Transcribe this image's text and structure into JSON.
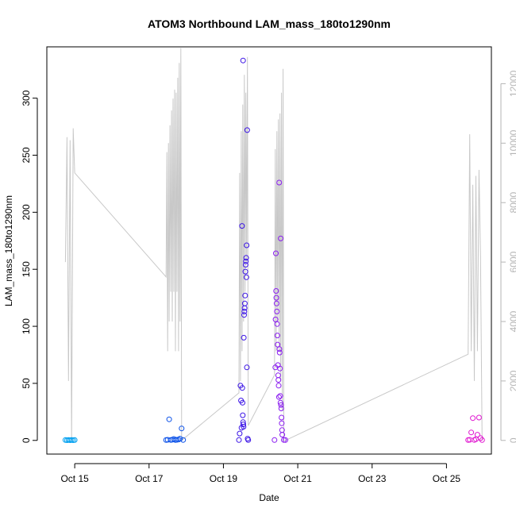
{
  "chart_data": {
    "type": "scatter",
    "title": "ATOM3 Northbound LAM_mass_180to1290nm",
    "xlabel": "Date",
    "ylabel": "LAM_mass_180to1290nm",
    "x_ticks": [
      "Oct 15",
      "Oct 17",
      "Oct 19",
      "Oct 21",
      "Oct 23",
      "Oct 25"
    ],
    "y_ticks_left": [
      0,
      50,
      100,
      150,
      200,
      250,
      300
    ],
    "y_ticks_right": [
      0,
      2000,
      4000,
      6000,
      8000,
      10000,
      12000
    ],
    "xlim": [
      "2016-10-14T06:00",
      "2016-10-26T05:00"
    ],
    "ylim_left": [
      -12,
      345
    ],
    "ylim_right": [
      -460,
      13240
    ],
    "grid": false,
    "legend": "none",
    "series": [
      {
        "kind": "points",
        "axis": "left",
        "color": "#00a0f0",
        "points": [
          [
            "2016-10-14T18:00",
            0.3
          ],
          [
            "2016-10-14T19:00",
            0.2
          ],
          [
            "2016-10-14T20:00",
            0.4
          ],
          [
            "2016-10-14T21:00",
            0.2
          ],
          [
            "2016-10-14T22:00",
            0.3
          ],
          [
            "2016-10-14T23:00",
            0.2
          ],
          [
            "2016-10-15T00:00",
            0.3
          ]
        ]
      },
      {
        "kind": "points",
        "axis": "left",
        "color": "#0a50e8",
        "points": [
          [
            "2016-10-17T11:00",
            0.3
          ],
          [
            "2016-10-17T12:00",
            0.5
          ],
          [
            "2016-10-17T13:00",
            18.5
          ],
          [
            "2016-10-17T14:00",
            0.4
          ],
          [
            "2016-10-17T15:00",
            0.6
          ],
          [
            "2016-10-17T16:00",
            1.2
          ],
          [
            "2016-10-17T17:00",
            0.3
          ],
          [
            "2016-10-17T18:00",
            0.5
          ],
          [
            "2016-10-17T19:00",
            0.8
          ],
          [
            "2016-10-17T20:00",
            1.5
          ],
          [
            "2016-10-17T21:00",
            10.5
          ],
          [
            "2016-10-17T22:00",
            0.4
          ]
        ]
      },
      {
        "kind": "points",
        "axis": "left",
        "color": "#3b14e6",
        "points": [
          [
            "2016-10-19T10:00",
            0.3
          ],
          [
            "2016-10-19T10:30",
            6
          ],
          [
            "2016-10-19T11:00",
            48
          ],
          [
            "2016-10-19T11:20",
            35
          ],
          [
            "2016-10-19T11:40",
            11
          ],
          [
            "2016-10-19T12:00",
            188
          ],
          [
            "2016-10-19T12:10",
            46
          ],
          [
            "2016-10-19T12:20",
            33
          ],
          [
            "2016-10-19T12:30",
            22
          ],
          [
            "2016-10-19T12:40",
            16
          ],
          [
            "2016-10-19T12:50",
            14
          ],
          [
            "2016-10-19T13:00",
            12
          ],
          [
            "2016-10-19T13:10",
            90
          ],
          [
            "2016-10-19T13:20",
            110
          ],
          [
            "2016-10-19T13:30",
            113
          ],
          [
            "2016-10-19T13:40",
            116
          ],
          [
            "2016-10-19T13:50",
            120
          ],
          [
            "2016-10-19T14:00",
            127
          ],
          [
            "2016-10-19T14:10",
            148
          ],
          [
            "2016-10-19T14:20",
            154
          ],
          [
            "2016-10-19T14:30",
            157
          ],
          [
            "2016-10-19T14:40",
            160
          ],
          [
            "2016-10-19T14:50",
            143
          ],
          [
            "2016-10-19T15:00",
            171
          ],
          [
            "2016-10-19T15:10",
            64
          ],
          [
            "2016-10-19T15:20",
            272
          ],
          [
            "2016-10-19T12:40",
            333
          ],
          [
            "2016-10-19T15:40",
            1.5
          ],
          [
            "2016-10-19T16:00",
            0.3
          ]
        ]
      },
      {
        "kind": "points",
        "axis": "left",
        "color": "#8a1cf0",
        "points": [
          [
            "2016-10-20T09:00",
            0.3
          ],
          [
            "2016-10-20T09:30",
            64
          ],
          [
            "2016-10-20T09:40",
            106
          ],
          [
            "2016-10-20T09:50",
            164
          ],
          [
            "2016-10-20T10:00",
            131
          ],
          [
            "2016-10-20T10:10",
            125
          ],
          [
            "2016-10-20T10:20",
            120
          ],
          [
            "2016-10-20T10:30",
            113
          ],
          [
            "2016-10-20T10:40",
            102
          ],
          [
            "2016-10-20T10:50",
            92
          ],
          [
            "2016-10-20T11:00",
            84
          ],
          [
            "2016-10-20T11:10",
            66
          ],
          [
            "2016-10-20T11:20",
            57
          ],
          [
            "2016-10-20T11:30",
            53
          ],
          [
            "2016-10-20T11:40",
            48
          ],
          [
            "2016-10-20T11:50",
            38
          ],
          [
            "2016-10-20T12:00",
            226
          ],
          [
            "2016-10-20T12:10",
            80
          ],
          [
            "2016-10-20T12:20",
            77
          ],
          [
            "2016-10-20T12:30",
            63
          ],
          [
            "2016-10-20T12:40",
            39
          ],
          [
            "2016-10-20T12:50",
            33
          ],
          [
            "2016-10-20T13:00",
            177
          ],
          [
            "2016-10-20T13:10",
            31
          ],
          [
            "2016-10-20T13:20",
            28
          ],
          [
            "2016-10-20T13:30",
            20
          ],
          [
            "2016-10-20T13:40",
            15
          ],
          [
            "2016-10-20T13:50",
            9
          ],
          [
            "2016-10-20T14:00",
            5
          ],
          [
            "2016-10-20T15:00",
            0.4
          ],
          [
            "2016-10-20T16:00",
            0.3
          ]
        ]
      },
      {
        "kind": "points",
        "axis": "left",
        "color": "#e016d0",
        "points": [
          [
            "2016-10-25T14:00",
            0.3
          ],
          [
            "2016-10-25T15:00",
            0.5
          ],
          [
            "2016-10-25T16:00",
            7
          ],
          [
            "2016-10-25T17:00",
            19.5
          ],
          [
            "2016-10-25T18:00",
            0.4
          ],
          [
            "2016-10-25T19:00",
            1
          ],
          [
            "2016-10-25T20:00",
            5
          ],
          [
            "2016-10-25T21:00",
            20
          ],
          [
            "2016-10-25T22:00",
            2
          ],
          [
            "2016-10-25T23:00",
            0.3
          ]
        ]
      },
      {
        "kind": "line",
        "axis": "right",
        "color": "#c8c8c8",
        "points": [
          [
            "2016-10-14T18:00",
            6000
          ],
          [
            "2016-10-14T19:00",
            10200
          ],
          [
            "2016-10-14T20:00",
            2000
          ],
          [
            "2016-10-14T21:00",
            10100
          ],
          [
            "2016-10-14T22:00",
            0
          ],
          [
            "2016-10-14T23:00",
            10500
          ],
          [
            "2016-10-15T00:00",
            9000
          ],
          [
            "2016-10-17T11:00",
            5500
          ],
          [
            "2016-10-17T11:30",
            9700
          ],
          [
            "2016-10-17T12:00",
            3000
          ],
          [
            "2016-10-17T12:30",
            10000
          ],
          [
            "2016-10-17T13:00",
            4000
          ],
          [
            "2016-10-17T13:30",
            10600
          ],
          [
            "2016-10-17T14:00",
            5000
          ],
          [
            "2016-10-17T14:30",
            11100
          ],
          [
            "2016-10-17T15:00",
            4000
          ],
          [
            "2016-10-17T15:30",
            11500
          ],
          [
            "2016-10-17T16:00",
            5000
          ],
          [
            "2016-10-17T16:30",
            11800
          ],
          [
            "2016-10-17T17:00",
            3000
          ],
          [
            "2016-10-17T17:30",
            11700
          ],
          [
            "2016-10-17T18:00",
            5000
          ],
          [
            "2016-10-17T18:30",
            12200
          ],
          [
            "2016-10-17T19:00",
            3000
          ],
          [
            "2016-10-17T19:30",
            12700
          ],
          [
            "2016-10-17T20:00",
            4000
          ],
          [
            "2016-10-17T20:30",
            13200
          ],
          [
            "2016-10-17T21:00",
            0
          ],
          [
            "2016-10-19T10:00",
            1600
          ],
          [
            "2016-10-19T10:30",
            9000
          ],
          [
            "2016-10-19T11:00",
            2000
          ],
          [
            "2016-10-19T11:30",
            10400
          ],
          [
            "2016-10-19T12:00",
            3000
          ],
          [
            "2016-10-19T12:30",
            11300
          ],
          [
            "2016-10-19T13:00",
            4000
          ],
          [
            "2016-10-19T13:30",
            12300
          ],
          [
            "2016-10-19T14:00",
            5000
          ],
          [
            "2016-10-19T14:30",
            11700
          ],
          [
            "2016-10-19T15:00",
            6000
          ],
          [
            "2016-10-19T15:30",
            12900
          ],
          [
            "2016-10-19T16:00",
            500
          ],
          [
            "2016-10-20T09:00",
            2200
          ],
          [
            "2016-10-20T09:30",
            9800
          ],
          [
            "2016-10-20T10:00",
            3000
          ],
          [
            "2016-10-20T10:30",
            10400
          ],
          [
            "2016-10-20T11:00",
            4000
          ],
          [
            "2016-10-20T11:30",
            10800
          ],
          [
            "2016-10-20T12:00",
            3000
          ],
          [
            "2016-10-20T12:30",
            11000
          ],
          [
            "2016-10-20T13:00",
            2000
          ],
          [
            "2016-10-20T13:30",
            11700
          ],
          [
            "2016-10-20T14:00",
            1000
          ],
          [
            "2016-10-20T14:30",
            12500
          ],
          [
            "2016-10-20T15:00",
            0
          ],
          [
            "2016-10-20T16:00",
            0
          ],
          [
            "2016-10-25T14:00",
            2900
          ],
          [
            "2016-10-25T15:00",
            10300
          ],
          [
            "2016-10-25T16:00",
            3000
          ],
          [
            "2016-10-25T17:00",
            8600
          ],
          [
            "2016-10-25T18:00",
            2000
          ],
          [
            "2016-10-25T19:00",
            8900
          ],
          [
            "2016-10-25T20:00",
            3000
          ],
          [
            "2016-10-25T21:00",
            9100
          ],
          [
            "2016-10-25T22:00",
            6200
          ],
          [
            "2016-10-25T23:00",
            0
          ]
        ]
      }
    ]
  }
}
